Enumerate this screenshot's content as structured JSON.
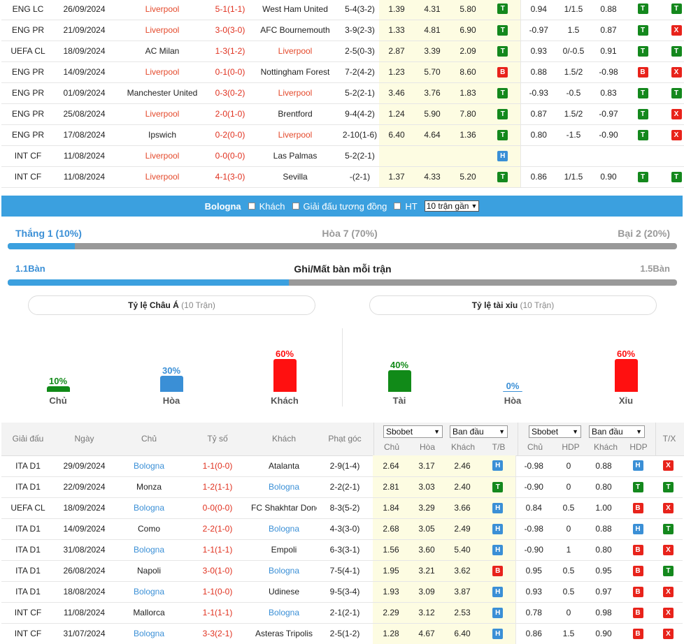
{
  "liverpool_matches": [
    {
      "league": "ENG LC",
      "date": "26/09/2024",
      "home": "Liverpool",
      "score": "5-1(1-1)",
      "away": "West Ham United",
      "corner": "5-4(3-2)",
      "o1": "1.39",
      "o2": "4.31",
      "o3": "5.80",
      "tb": "T",
      "a1": "0.94",
      "hdp": "1/1.5",
      "a2": "0.88",
      "r1": "T",
      "r2": "T"
    },
    {
      "league": "ENG PR",
      "date": "21/09/2024",
      "home": "Liverpool",
      "score": "3-0(3-0)",
      "away": "AFC Bournemouth",
      "corner": "3-9(2-3)",
      "o1": "1.33",
      "o2": "4.81",
      "o3": "6.90",
      "tb": "T",
      "a1": "-0.97",
      "hdp": "1.5",
      "a2": "0.87",
      "r1": "T",
      "r2": "X"
    },
    {
      "league": "UEFA CL",
      "date": "18/09/2024",
      "home": "AC Milan",
      "score": "1-3(1-2)",
      "away": "Liverpool",
      "corner": "2-5(0-3)",
      "o1": "2.87",
      "o2": "3.39",
      "o3": "2.09",
      "tb": "T",
      "a1": "0.93",
      "hdp": "0/-0.5",
      "a2": "0.91",
      "r1": "T",
      "r2": "T"
    },
    {
      "league": "ENG PR",
      "date": "14/09/2024",
      "home": "Liverpool",
      "score": "0-1(0-0)",
      "away": "Nottingham Forest",
      "corner": "7-2(4-2)",
      "o1": "1.23",
      "o2": "5.70",
      "o3": "8.60",
      "tb": "B",
      "a1": "0.88",
      "hdp": "1.5/2",
      "a2": "-0.98",
      "r1": "B",
      "r2": "X"
    },
    {
      "league": "ENG PR",
      "date": "01/09/2024",
      "home": "Manchester United",
      "score": "0-3(0-2)",
      "away": "Liverpool",
      "corner": "5-2(2-1)",
      "o1": "3.46",
      "o2": "3.76",
      "o3": "1.83",
      "tb": "T",
      "a1": "-0.93",
      "hdp": "-0.5",
      "a2": "0.83",
      "r1": "T",
      "r2": "T"
    },
    {
      "league": "ENG PR",
      "date": "25/08/2024",
      "home": "Liverpool",
      "score": "2-0(1-0)",
      "away": "Brentford",
      "corner": "9-4(4-2)",
      "o1": "1.24",
      "o2": "5.90",
      "o3": "7.80",
      "tb": "T",
      "a1": "0.87",
      "hdp": "1.5/2",
      "a2": "-0.97",
      "r1": "T",
      "r2": "X"
    },
    {
      "league": "ENG PR",
      "date": "17/08/2024",
      "home": "Ipswich",
      "score": "0-2(0-0)",
      "away": "Liverpool",
      "corner": "2-10(1-6)",
      "o1": "6.40",
      "o2": "4.64",
      "o3": "1.36",
      "tb": "T",
      "a1": "0.80",
      "hdp": "-1.5",
      "a2": "-0.90",
      "r1": "T",
      "r2": "X"
    },
    {
      "league": "INT CF",
      "date": "11/08/2024",
      "home": "Liverpool",
      "score": "0-0(0-0)",
      "away": "Las Palmas",
      "corner": "5-2(2-1)",
      "o1": "",
      "o2": "",
      "o3": "",
      "tb": "H",
      "a1": "",
      "hdp": "",
      "a2": "",
      "r1": "",
      "r2": ""
    },
    {
      "league": "INT CF",
      "date": "11/08/2024",
      "home": "Liverpool",
      "score": "4-1(3-0)",
      "away": "Sevilla",
      "corner": "-(2-1)",
      "o1": "1.37",
      "o2": "4.33",
      "o3": "5.20",
      "tb": "T",
      "a1": "0.86",
      "hdp": "1/1.5",
      "a2": "0.90",
      "r1": "T",
      "r2": "T"
    }
  ],
  "bologna_bar": {
    "team": "Bologna",
    "opt_away": "Khách",
    "opt_same_league": "Giải đấu tương đồng",
    "opt_ht": "HT",
    "select_value": "10 trận gần"
  },
  "form": {
    "win": "Thắng 1 (10%)",
    "draw": "Hòa 7 (70%)",
    "loss": "Bại 2 (20%)",
    "win_fraction": 0.1
  },
  "goals": {
    "left": "1.1Bàn",
    "title": "Ghi/Mất bàn mỗi trận",
    "right": "1.5Bàn",
    "left_fraction": 0.42
  },
  "asian": {
    "title": "Tỷ lệ Châu Á",
    "sub": "(10 Trận)",
    "cols": [
      {
        "pct": "10%",
        "label": "Chủ",
        "value": 10,
        "color": "#118a18"
      },
      {
        "pct": "30%",
        "label": "Hòa",
        "value": 30,
        "color": "#3a8fd6"
      },
      {
        "pct": "60%",
        "label": "Khách",
        "value": 60,
        "color": "#ff1010"
      }
    ]
  },
  "overunder": {
    "title": "Tỷ lệ tài xỉu",
    "sub": "(10 Trận)",
    "cols": [
      {
        "pct": "40%",
        "label": "Tài",
        "value": 40,
        "color": "#118a18"
      },
      {
        "pct": "0%",
        "label": "Hòa",
        "value": 0,
        "color": "#3a8fd6"
      },
      {
        "pct": "60%",
        "label": "Xỉu",
        "value": 60,
        "color": "#ff1010"
      }
    ]
  },
  "bologna_header": {
    "league": "Giải đấu",
    "date": "Ngày",
    "home": "Chủ",
    "score": "Tỷ số",
    "away": "Khách",
    "corner": "Phạt góc",
    "book1": "Sbobet",
    "type1": "Ban đầu",
    "book2": "Sbobet",
    "type2": "Ban đầu",
    "c_home": "Chủ",
    "c_draw": "Hòa",
    "c_away": "Khách",
    "c_tb": "T/B",
    "c_home2": "Chủ",
    "c_hdp": "HDP",
    "c_away2": "Khách",
    "c_hdp2": "HDP",
    "c_tx": "T/X"
  },
  "bologna_matches": [
    {
      "league": "ITA D1",
      "date": "29/09/2024",
      "home": "Bologna",
      "score": "1-1(0-0)",
      "away": "Atalanta",
      "corner": "2-9(1-4)",
      "o1": "2.64",
      "o2": "3.17",
      "o3": "2.46",
      "tb": "H",
      "a1": "-0.98",
      "hdp": "0",
      "a2": "0.88",
      "r1": "H",
      "r2": "X"
    },
    {
      "league": "ITA D1",
      "date": "22/09/2024",
      "home": "Monza",
      "score": "1-2(1-1)",
      "away": "Bologna",
      "corner": "2-2(2-1)",
      "o1": "2.81",
      "o2": "3.03",
      "o3": "2.40",
      "tb": "T",
      "a1": "-0.90",
      "hdp": "0",
      "a2": "0.80",
      "r1": "T",
      "r2": "T"
    },
    {
      "league": "UEFA CL",
      "date": "18/09/2024",
      "home": "Bologna",
      "score": "0-0(0-0)",
      "away": "FC Shakhtar Donetsk",
      "corner": "8-3(5-2)",
      "o1": "1.84",
      "o2": "3.29",
      "o3": "3.66",
      "tb": "H",
      "a1": "0.84",
      "hdp": "0.5",
      "a2": "1.00",
      "r1": "B",
      "r2": "X"
    },
    {
      "league": "ITA D1",
      "date": "14/09/2024",
      "home": "Como",
      "score": "2-2(1-0)",
      "away": "Bologna",
      "corner": "4-3(3-0)",
      "o1": "2.68",
      "o2": "3.05",
      "o3": "2.49",
      "tb": "H",
      "a1": "-0.98",
      "hdp": "0",
      "a2": "0.88",
      "r1": "H",
      "r2": "T"
    },
    {
      "league": "ITA D1",
      "date": "31/08/2024",
      "home": "Bologna",
      "score": "1-1(1-1)",
      "away": "Empoli",
      "corner": "6-3(3-1)",
      "o1": "1.56",
      "o2": "3.60",
      "o3": "5.40",
      "tb": "H",
      "a1": "-0.90",
      "hdp": "1",
      "a2": "0.80",
      "r1": "B",
      "r2": "X"
    },
    {
      "league": "ITA D1",
      "date": "26/08/2024",
      "home": "Napoli",
      "score": "3-0(1-0)",
      "away": "Bologna",
      "corner": "7-5(4-1)",
      "o1": "1.95",
      "o2": "3.21",
      "o3": "3.62",
      "tb": "B",
      "a1": "0.95",
      "hdp": "0.5",
      "a2": "0.95",
      "r1": "B",
      "r2": "T"
    },
    {
      "league": "ITA D1",
      "date": "18/08/2024",
      "home": "Bologna",
      "score": "1-1(0-0)",
      "away": "Udinese",
      "corner": "9-5(3-4)",
      "o1": "1.93",
      "o2": "3.09",
      "o3": "3.87",
      "tb": "H",
      "a1": "0.93",
      "hdp": "0.5",
      "a2": "0.97",
      "r1": "B",
      "r2": "X"
    },
    {
      "league": "INT CF",
      "date": "11/08/2024",
      "home": "Mallorca",
      "score": "1-1(1-1)",
      "away": "Bologna",
      "corner": "2-1(2-1)",
      "o1": "2.29",
      "o2": "3.12",
      "o3": "2.53",
      "tb": "H",
      "a1": "0.78",
      "hdp": "0",
      "a2": "0.98",
      "r1": "B",
      "r2": "X"
    },
    {
      "league": "INT CF",
      "date": "31/07/2024",
      "home": "Bologna",
      "score": "3-3(2-1)",
      "away": "Asteras Tripolis",
      "corner": "2-5(1-2)",
      "o1": "1.28",
      "o2": "4.67",
      "o3": "6.40",
      "tb": "H",
      "a1": "0.86",
      "hdp": "1.5",
      "a2": "0.90",
      "r1": "B",
      "r2": "X"
    }
  ]
}
